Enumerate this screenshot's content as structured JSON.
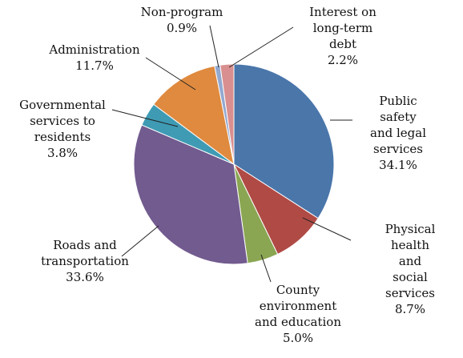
{
  "chart_data": {
    "type": "pie",
    "categories": [
      "Public safety\nand legal\nservices",
      "Physical\nhealth and\nsocial services",
      "County\nenvironment\nand education",
      "Roads and\ntransportation",
      "Governmental\nservices to\nresidents",
      "Administration",
      "Non-program",
      "Interest on\nlong-term\ndebt"
    ],
    "values": [
      34.1,
      8.7,
      5.0,
      33.6,
      3.8,
      11.7,
      0.9,
      2.2
    ],
    "value_labels": [
      "34.1%",
      "8.7%",
      "5.0%",
      "33.6%",
      "3.8%",
      "11.7%",
      "0.9%",
      "2.2%"
    ],
    "colors": [
      "#4a76aa",
      "#b04a45",
      "#8aa652",
      "#725b8f",
      "#3f9bb4",
      "#df8a3f",
      "#93a9d0",
      "#d98f8f"
    ]
  }
}
